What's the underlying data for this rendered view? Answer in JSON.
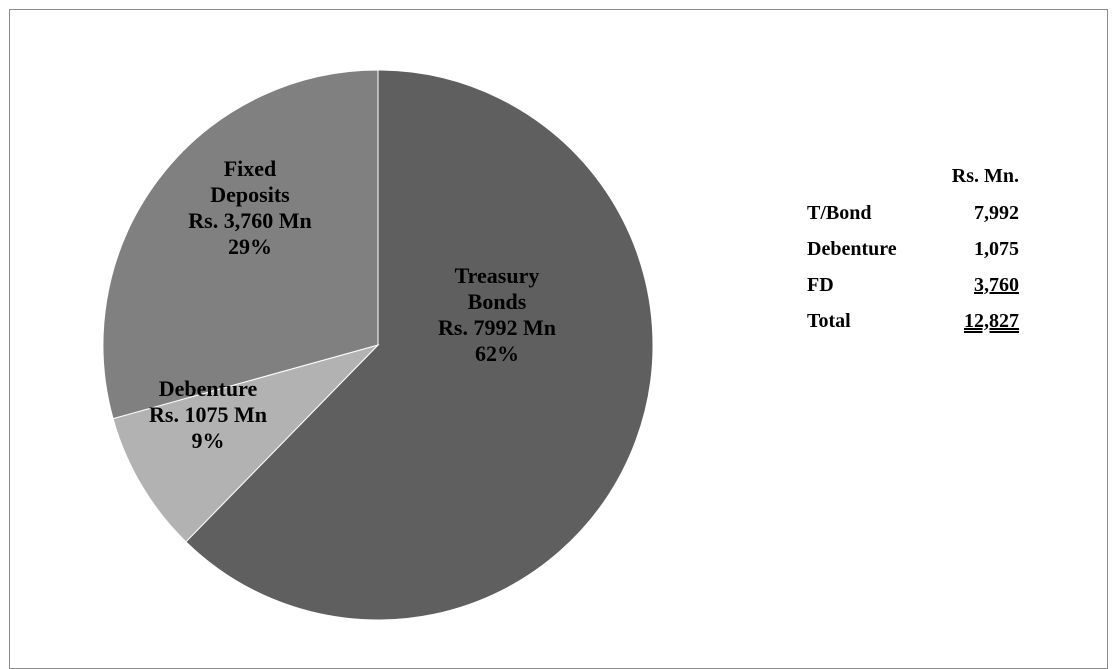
{
  "chart_data": {
    "type": "pie",
    "unit": "Rs. Mn.",
    "slices": [
      {
        "label_lines": [
          "Treasury",
          "Bonds",
          "Rs. 7992 Mn",
          "62%"
        ],
        "value": 7992,
        "percent": 62,
        "color": "#5f5f5f"
      },
      {
        "label_lines": [
          "Debenture",
          "Rs. 1075 Mn",
          "9%"
        ],
        "value": 1075,
        "percent": 9,
        "color": "#b2b2b2"
      },
      {
        "label_lines": [
          "Fixed",
          "Deposits",
          "Rs. 3,760 Mn",
          "29%"
        ],
        "value": 3760,
        "percent": 29,
        "color": "#808080"
      }
    ],
    "table": {
      "unit_label": "Rs. Mn.",
      "rows": [
        {
          "name": "T/Bond",
          "value": "7,992"
        },
        {
          "name": "Debenture",
          "value": "1,075"
        },
        {
          "name": "FD",
          "value": "3,760"
        },
        {
          "name": "Total",
          "value": "12,827"
        }
      ]
    }
  }
}
